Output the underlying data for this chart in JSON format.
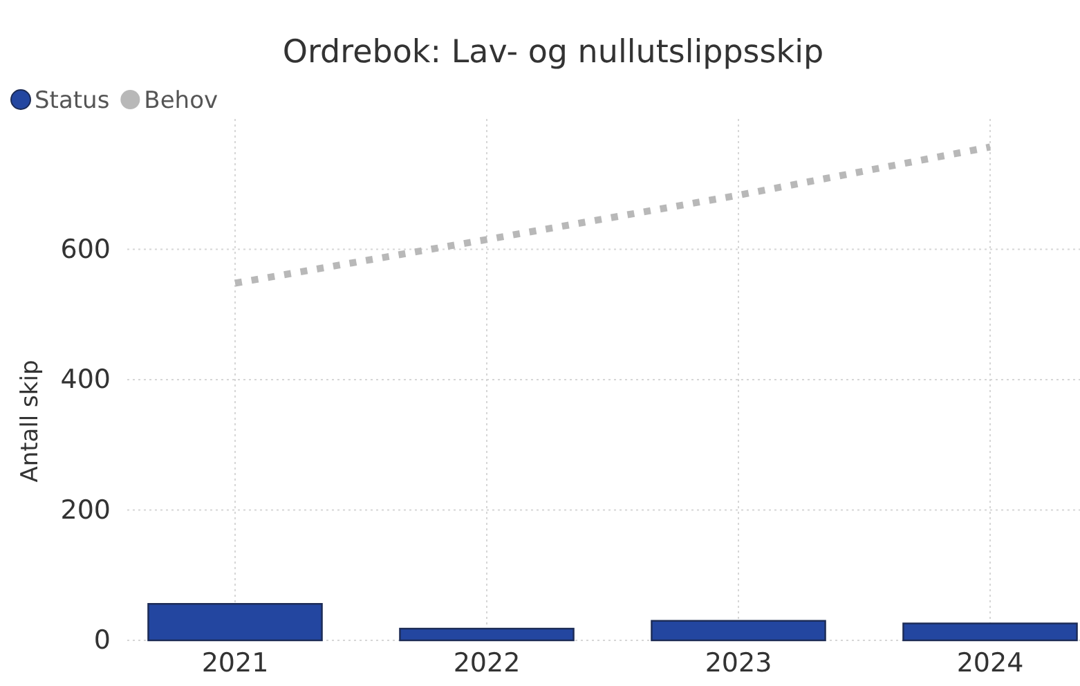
{
  "chart_data": {
    "type": "bar",
    "title": "Ordrebok: Lav- og nullutslippsskip",
    "ylabel": "Antall skip",
    "categories": [
      "2021",
      "2022",
      "2023",
      "2024"
    ],
    "series": [
      {
        "name": "Status",
        "color": "#2346a0",
        "values": [
          56,
          18,
          30,
          26
        ]
      },
      {
        "name": "Behov",
        "type": "line",
        "color": "#b8b8b8",
        "line_style": "dotted",
        "values": [
          548,
          615,
          683,
          757
        ]
      }
    ],
    "ylim": [
      0,
      800
    ],
    "yticks": [
      0,
      200,
      400,
      600
    ],
    "grid": true,
    "legend": "top left"
  }
}
